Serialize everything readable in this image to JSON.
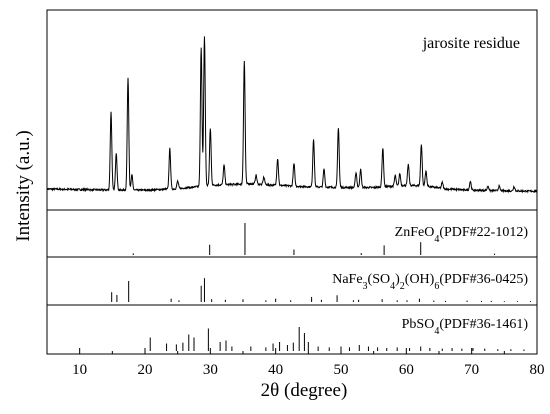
{
  "chart_data": {
    "type": "line",
    "xlabel": "2θ (degree)",
    "ylabel": "Intensity (a.u.)",
    "xlim": [
      5,
      80
    ],
    "x_ticks": [
      10,
      20,
      30,
      40,
      50,
      60,
      70,
      80
    ],
    "y_ticks_shown": false,
    "grid": false,
    "panels": [
      {
        "type": "line",
        "label": "jarosite residue",
        "baseline_profile": [
          [
            5,
            0.02
          ],
          [
            8,
            0.018
          ],
          [
            12,
            0.015
          ],
          [
            15,
            0.013
          ],
          [
            20,
            0.012
          ],
          [
            25,
            0.022
          ],
          [
            28,
            0.035
          ],
          [
            30,
            0.045
          ],
          [
            33,
            0.05
          ],
          [
            36,
            0.055
          ],
          [
            40,
            0.045
          ],
          [
            45,
            0.035
          ],
          [
            50,
            0.03
          ],
          [
            55,
            0.03
          ],
          [
            60,
            0.045
          ],
          [
            63,
            0.04
          ],
          [
            66,
            0.02
          ],
          [
            70,
            0.012
          ],
          [
            75,
            0.008
          ],
          [
            80,
            0.005
          ]
        ],
        "peaks": [
          [
            14.8,
            0.52
          ],
          [
            15.6,
            0.25
          ],
          [
            17.4,
            0.75
          ],
          [
            18.0,
            0.1
          ],
          [
            23.8,
            0.27
          ],
          [
            25.0,
            0.05
          ],
          [
            28.6,
            0.93
          ],
          [
            29.1,
            1.0
          ],
          [
            30.0,
            0.38
          ],
          [
            32.1,
            0.13
          ],
          [
            35.2,
            0.82
          ],
          [
            37.0,
            0.06
          ],
          [
            38.2,
            0.05
          ],
          [
            40.3,
            0.18
          ],
          [
            42.8,
            0.15
          ],
          [
            45.8,
            0.32
          ],
          [
            47.4,
            0.12
          ],
          [
            49.6,
            0.4
          ],
          [
            52.3,
            0.1
          ],
          [
            53.0,
            0.12
          ],
          [
            56.4,
            0.26
          ],
          [
            58.3,
            0.07
          ],
          [
            59.0,
            0.08
          ],
          [
            60.3,
            0.14
          ],
          [
            62.3,
            0.28
          ],
          [
            63.0,
            0.1
          ],
          [
            65.5,
            0.04
          ],
          [
            69.8,
            0.06
          ],
          [
            72.5,
            0.03
          ],
          [
            74.2,
            0.03
          ],
          [
            76.5,
            0.03
          ]
        ]
      },
      {
        "type": "stick",
        "label_main": "ZnFeO",
        "label_sub": "4",
        "label_ref": "(PDF#22-1012)",
        "sticks": [
          [
            18.2,
            0.05
          ],
          [
            29.9,
            0.32
          ],
          [
            35.3,
            1.0
          ],
          [
            42.8,
            0.17
          ],
          [
            53.1,
            0.06
          ],
          [
            56.6,
            0.3
          ],
          [
            62.2,
            0.4
          ],
          [
            73.5,
            0.04
          ]
        ]
      },
      {
        "type": "stick",
        "label_parts": [
          {
            "t": "NaFe",
            "s": ""
          },
          {
            "t": "3",
            "s": "sub"
          },
          {
            "t": "(SO",
            "s": ""
          },
          {
            "t": "4",
            "s": "sub"
          },
          {
            "t": ")",
            "s": ""
          },
          {
            "t": "2",
            "s": "sub"
          },
          {
            "t": "(OH)",
            "s": ""
          },
          {
            "t": "6",
            "s": "sub"
          },
          {
            "t": "(PDF#36-0425)",
            "s": ""
          }
        ],
        "sticks": [
          [
            14.9,
            0.35
          ],
          [
            15.7,
            0.25
          ],
          [
            17.5,
            0.75
          ],
          [
            24.0,
            0.12
          ],
          [
            25.2,
            0.06
          ],
          [
            28.6,
            0.58
          ],
          [
            29.1,
            0.85
          ],
          [
            30.2,
            0.1
          ],
          [
            32.3,
            0.08
          ],
          [
            35.0,
            0.1
          ],
          [
            38.5,
            0.06
          ],
          [
            40.0,
            0.12
          ],
          [
            42.3,
            0.06
          ],
          [
            45.5,
            0.18
          ],
          [
            47.0,
            0.08
          ],
          [
            49.4,
            0.24
          ],
          [
            51.9,
            0.06
          ],
          [
            52.7,
            0.08
          ],
          [
            56.3,
            0.1
          ],
          [
            58.6,
            0.06
          ],
          [
            60.1,
            0.06
          ],
          [
            62.0,
            0.12
          ],
          [
            64.2,
            0.05
          ],
          [
            66.0,
            0.04
          ],
          [
            69.3,
            0.05
          ],
          [
            71.5,
            0.04
          ],
          [
            73.0,
            0.04
          ],
          [
            75.0,
            0.03
          ],
          [
            77.0,
            0.03
          ],
          [
            79.0,
            0.03
          ]
        ]
      },
      {
        "type": "stick",
        "label_main": "PbSO",
        "label_sub": "4",
        "label_ref": "(PDF#36-1461)",
        "sticks": [
          [
            20.8,
            0.45
          ],
          [
            23.3,
            0.25
          ],
          [
            24.8,
            0.22
          ],
          [
            25.8,
            0.28
          ],
          [
            26.7,
            0.55
          ],
          [
            27.5,
            0.45
          ],
          [
            29.7,
            0.75
          ],
          [
            31.5,
            0.3
          ],
          [
            32.4,
            0.35
          ],
          [
            33.3,
            0.15
          ],
          [
            36.2,
            0.15
          ],
          [
            38.5,
            0.12
          ],
          [
            39.6,
            0.25
          ],
          [
            40.6,
            0.3
          ],
          [
            41.8,
            0.2
          ],
          [
            42.7,
            0.28
          ],
          [
            43.6,
            0.8
          ],
          [
            44.4,
            0.6
          ],
          [
            45.0,
            0.3
          ],
          [
            46.5,
            0.15
          ],
          [
            48.2,
            0.12
          ],
          [
            50.0,
            0.15
          ],
          [
            51.3,
            0.12
          ],
          [
            52.8,
            0.2
          ],
          [
            54.2,
            0.15
          ],
          [
            55.6,
            0.12
          ],
          [
            57.0,
            0.1
          ],
          [
            58.6,
            0.12
          ],
          [
            60.5,
            0.1
          ],
          [
            62.2,
            0.15
          ],
          [
            63.6,
            0.1
          ],
          [
            65.5,
            0.08
          ],
          [
            67.0,
            0.1
          ],
          [
            68.5,
            0.08
          ],
          [
            70.2,
            0.1
          ],
          [
            72.0,
            0.08
          ],
          [
            74.0,
            0.06
          ],
          [
            76.0,
            0.06
          ],
          [
            78.0,
            0.05
          ]
        ]
      }
    ]
  }
}
